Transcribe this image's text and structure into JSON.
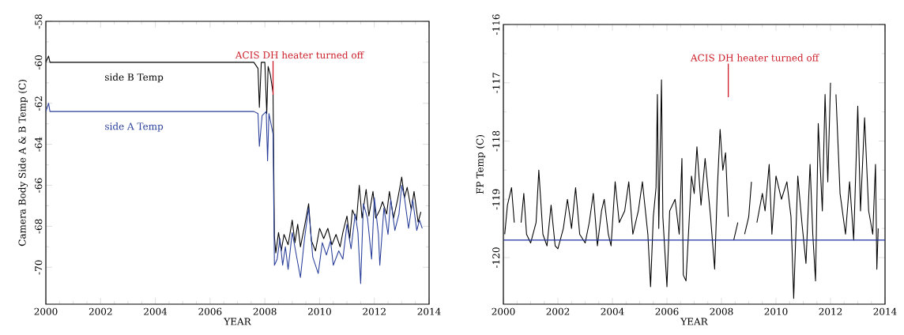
{
  "chart_data": [
    {
      "type": "line",
      "xlabel": "YEAR",
      "ylabel": "Camera Body Side A & B Temp (C)",
      "xlim": [
        2000,
        2014
      ],
      "ylim": [
        -71.8,
        -58
      ],
      "xticks": [
        2000,
        2002,
        2004,
        2006,
        2008,
        2010,
        2012,
        2014
      ],
      "yticks": [
        -70,
        -68,
        -66,
        -64,
        -62,
        -60,
        -58
      ],
      "ref_lines": [
        {
          "axis": "x",
          "value": 2008.3,
          "label": "ACIS DH heater turned off",
          "color": "#cc1f2a"
        }
      ],
      "series": [
        {
          "name": "side B Temp",
          "color": "#000000",
          "x": [
            2000.0,
            2000.1,
            2000.15,
            2007.6,
            2007.75,
            2007.8,
            2007.87,
            2008.0,
            2008.07,
            2008.12,
            2008.2,
            2008.3,
            2008.35,
            2008.4,
            2008.5,
            2008.6,
            2008.7,
            2008.85,
            2009.0,
            2009.1,
            2009.2,
            2009.3,
            2009.45,
            2009.6,
            2009.7,
            2009.85,
            2010.0,
            2010.15,
            2010.3,
            2010.45,
            2010.6,
            2010.75,
            2010.85,
            2011.0,
            2011.1,
            2011.2,
            2011.35,
            2011.45,
            2011.55,
            2011.7,
            2011.8,
            2011.95,
            2012.05,
            2012.2,
            2012.3,
            2012.45,
            2012.55,
            2012.7,
            2012.85,
            2013.0,
            2013.1,
            2013.2,
            2013.35,
            2013.45,
            2013.6,
            2013.7
          ],
          "values": [
            -60,
            -59.7,
            -60,
            -60,
            -60.3,
            -62.2,
            -60,
            -60,
            -62.5,
            -60.2,
            -60.6,
            -61.5,
            -68.5,
            -69.3,
            -68.3,
            -69.2,
            -68.4,
            -68.9,
            -67.7,
            -68.8,
            -67.9,
            -69.0,
            -68.0,
            -66.9,
            -68.7,
            -69.2,
            -68.1,
            -68.6,
            -68.1,
            -68.9,
            -68.4,
            -69.0,
            -68.3,
            -67.5,
            -68.6,
            -67.2,
            -67.7,
            -66.0,
            -67.6,
            -66.2,
            -67.5,
            -66.3,
            -67.6,
            -67.2,
            -66.8,
            -67.4,
            -66.3,
            -67.6,
            -66.7,
            -65.6,
            -66.6,
            -66.1,
            -67.2,
            -66.3,
            -67.8,
            -67.3
          ]
        },
        {
          "name": "side A Temp",
          "color": "#2a3f9a",
          "x": [
            2000.0,
            2000.1,
            2000.15,
            2007.6,
            2007.75,
            2007.8,
            2007.9,
            2008.05,
            2008.1,
            2008.15,
            2008.3,
            2008.35,
            2008.45,
            2008.55,
            2008.65,
            2008.75,
            2008.85,
            2009.0,
            2009.15,
            2009.3,
            2009.45,
            2009.6,
            2009.75,
            2009.95,
            2010.1,
            2010.25,
            2010.4,
            2010.5,
            2010.7,
            2010.85,
            2011.0,
            2011.15,
            2011.3,
            2011.4,
            2011.5,
            2011.6,
            2011.75,
            2011.9,
            2012.0,
            2012.15,
            2012.2,
            2012.35,
            2012.5,
            2012.6,
            2012.75,
            2012.9,
            2013.0,
            2013.1,
            2013.25,
            2013.4,
            2013.55,
            2013.65,
            2013.75
          ],
          "values": [
            -62.4,
            -62.0,
            -62.4,
            -62.4,
            -62.5,
            -64.1,
            -62.6,
            -62.4,
            -64.8,
            -62.5,
            -63.5,
            -69.9,
            -69.6,
            -68.6,
            -69.9,
            -69.0,
            -70.1,
            -68.3,
            -69.4,
            -70.5,
            -68.6,
            -67.1,
            -69.5,
            -70.3,
            -68.8,
            -69.4,
            -68.7,
            -69.9,
            -69.2,
            -69.6,
            -67.9,
            -69.1,
            -67.4,
            -68.3,
            -70.8,
            -66.9,
            -67.6,
            -69.6,
            -66.6,
            -68.4,
            -69.9,
            -67.1,
            -68.4,
            -66.7,
            -68.2,
            -67.4,
            -66.0,
            -66.6,
            -68.1,
            -66.7,
            -68.2,
            -67.7,
            -68.1
          ]
        }
      ]
    },
    {
      "type": "line",
      "xlabel": "YEAR",
      "ylabel": "FP Temp (C)",
      "xlim": [
        2000,
        2014
      ],
      "ylim": [
        -120.8,
        -116
      ],
      "xticks": [
        2000,
        2002,
        2004,
        2006,
        2008,
        2010,
        2012,
        2014
      ],
      "yticks": [
        -120,
        -119,
        -118,
        -117,
        -116
      ],
      "ref_lines": [
        {
          "axis": "y",
          "value": -119.7,
          "color": "#1f2fa0"
        },
        {
          "axis": "x",
          "value": 2008.25,
          "label": "ACIS DH heater turned off",
          "color": "#cc1f2a"
        }
      ],
      "series": [
        {
          "color": "#000000",
          "x": [
            2000.05,
            2000.15,
            2000.3,
            2000.4,
            2000.55,
            2000.65,
            2000.75,
            2000.85,
            2001.0,
            2001.2,
            2001.3,
            2001.45,
            2001.6,
            2001.75,
            2001.9,
            2002.0,
            2002.2,
            2002.35,
            2002.5,
            2002.65,
            2002.8,
            2003.0,
            2003.15,
            2003.3,
            2003.45,
            2003.6,
            2003.7,
            2003.85,
            2003.95,
            2004.1,
            2004.25,
            2004.45,
            2004.6,
            2004.75,
            2004.95,
            2005.1,
            2005.3,
            2005.4,
            2005.5,
            2005.6,
            2005.65,
            2005.7,
            2005.8,
            2005.85,
            2006.0,
            2006.1,
            2006.3,
            2006.45,
            2006.55,
            2006.6,
            2006.7,
            2006.8,
            2006.9,
            2007.0,
            2007.1,
            2007.25,
            2007.4,
            2007.6,
            2007.75,
            2007.85,
            2007.95,
            2008.05,
            2008.15,
            2008.25,
            2008.35,
            2008.45,
            2008.6,
            2008.75,
            2008.85,
            2009.0,
            2009.1,
            2009.2,
            2009.3,
            2009.5,
            2009.6,
            2009.75,
            2009.85,
            2010.0,
            2010.2,
            2010.4,
            2010.55,
            2010.65,
            2010.8,
            2010.95,
            2011.1,
            2011.25,
            2011.35,
            2011.45,
            2011.55,
            2011.7,
            2011.8,
            2011.9,
            2012.0,
            2012.1,
            2012.2,
            2012.35,
            2012.55,
            2012.7,
            2012.85,
            2013.0,
            2013.1,
            2013.25,
            2013.4,
            2013.55,
            2013.65,
            2013.7,
            2013.75
          ],
          "values": [
            -119.6,
            -119.1,
            -118.8,
            -119.4,
            null,
            -119.4,
            -118.9,
            -119.6,
            -119.75,
            -119.4,
            -118.5,
            -119.6,
            -119.8,
            -119.1,
            -119.8,
            -119.85,
            -119.5,
            -119.0,
            -119.5,
            -118.8,
            -119.6,
            -119.75,
            -119.4,
            -118.9,
            -119.8,
            -119.2,
            -119.0,
            -119.6,
            -119.8,
            -118.7,
            -119.4,
            -119.2,
            -118.7,
            -119.6,
            -119.2,
            -118.7,
            -119.6,
            -120.5,
            -119.3,
            -118.8,
            -117.2,
            -119.5,
            -116.95,
            -119.3,
            -120.5,
            -119.2,
            -119.0,
            -119.6,
            -118.3,
            -120.3,
            -120.4,
            -119.5,
            -118.6,
            -118.9,
            -118.1,
            -119.1,
            -118.3,
            -119.3,
            -120.2,
            -118.8,
            -117.8,
            -118.5,
            -118.2,
            -119.3,
            null,
            -119.7,
            -119.4,
            null,
            -119.6,
            -119.3,
            -118.7,
            null,
            -119.4,
            -118.9,
            -119.2,
            -118.4,
            -119.6,
            -118.6,
            -119.0,
            -118.7,
            -119.3,
            -120.7,
            -118.6,
            -119.4,
            -120.1,
            -118.4,
            -119.6,
            -120.4,
            -117.7,
            -119.2,
            -117.2,
            -118.7,
            -117.0,
            null,
            -117.2,
            -118.9,
            -119.6,
            -118.7,
            -119.7,
            -117.4,
            -119.2,
            -117.6,
            -119.2,
            -119.6,
            -118.4,
            -120.2,
            -119.5
          ]
        }
      ]
    }
  ]
}
